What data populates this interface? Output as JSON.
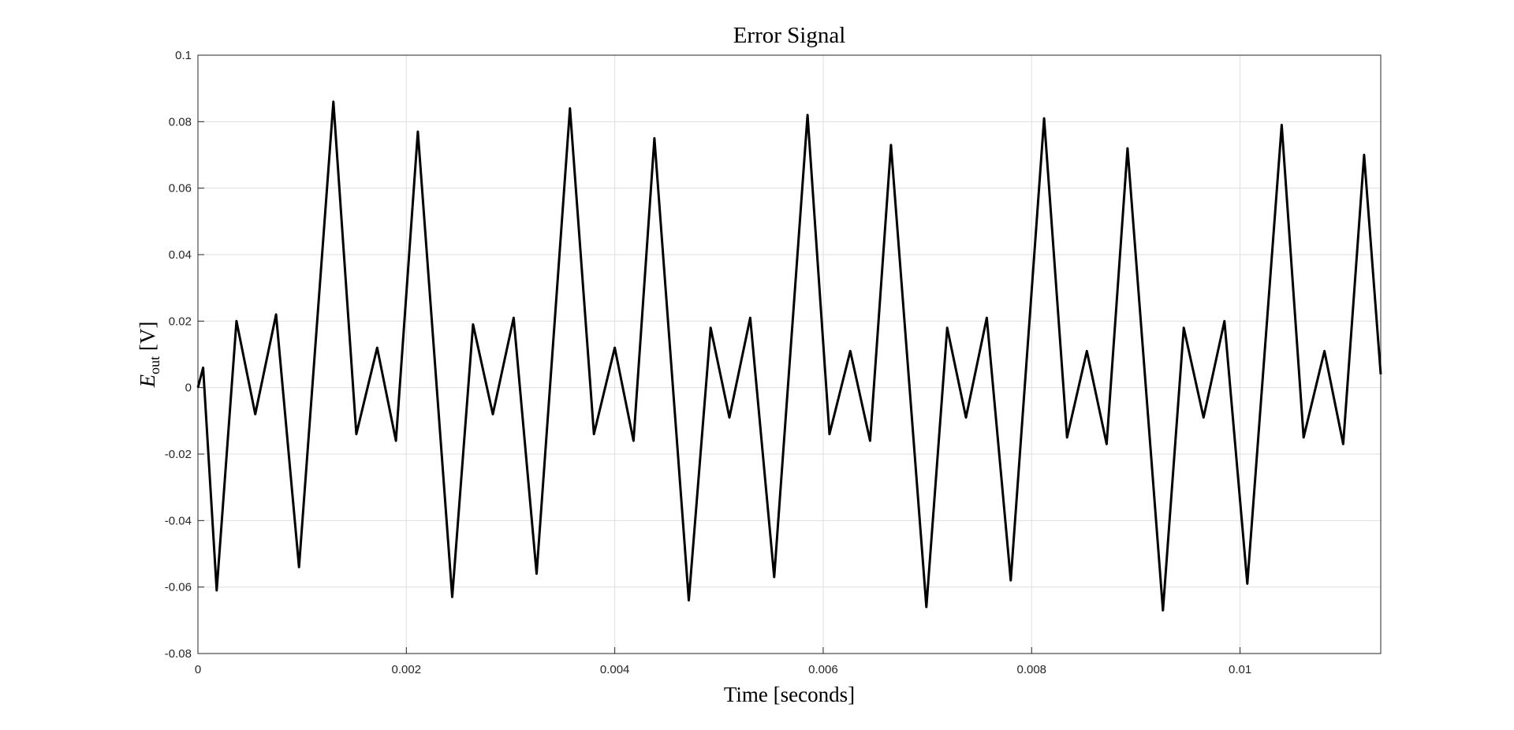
{
  "chart_data": {
    "type": "line",
    "title": "Error Signal",
    "xlabel": "Time [seconds]",
    "ylabel": {
      "main": "E",
      "subscript": "out",
      "unit": "[V]"
    },
    "xlim": [
      0,
      0.01135
    ],
    "ylim": [
      -0.08,
      0.1
    ],
    "xticks": [
      0,
      0.002,
      0.004,
      0.006,
      0.008,
      0.01
    ],
    "xtick_labels": [
      "0",
      "0.002",
      "0.004",
      "0.006",
      "0.008",
      "0.01"
    ],
    "yticks": [
      -0.08,
      -0.06,
      -0.04,
      -0.02,
      0,
      0.02,
      0.04,
      0.06,
      0.08,
      0.1
    ],
    "ytick_labels": [
      "-0.08",
      "-0.06",
      "-0.04",
      "-0.02",
      "0",
      "0.02",
      "0.04",
      "0.06",
      "0.08",
      "0.1"
    ],
    "grid": true,
    "line_color": "#000000",
    "series": [
      {
        "x": [
          0,
          5e-05,
          0.00018,
          0.00037,
          0.00055,
          0.00075,
          0.00097,
          0.0013,
          0.00152,
          0.00172,
          0.0019,
          0.00211,
          0.00244,
          0.00264,
          0.00283,
          0.00303,
          0.00325,
          0.00357,
          0.0038,
          0.004,
          0.00418,
          0.00438,
          0.00471,
          0.00492,
          0.0051,
          0.0053,
          0.00553,
          0.00585,
          0.00606,
          0.00626,
          0.00645,
          0.00665,
          0.00699,
          0.00719,
          0.00737,
          0.00757,
          0.0078,
          0.00812,
          0.00834,
          0.00853,
          0.00872,
          0.00892,
          0.00926,
          0.00946,
          0.00965,
          0.00985,
          0.01007,
          0.0104,
          0.01061,
          0.01081,
          0.01099,
          0.01119,
          0.01135
        ],
        "y": [
          0,
          0.006,
          -0.061,
          0.02,
          -0.008,
          0.022,
          -0.054,
          0.086,
          -0.014,
          0.012,
          -0.016,
          0.077,
          -0.063,
          0.019,
          -0.008,
          0.021,
          -0.056,
          0.084,
          -0.014,
          0.012,
          -0.016,
          0.075,
          -0.064,
          0.018,
          -0.009,
          0.021,
          -0.057,
          0.082,
          -0.014,
          0.011,
          -0.016,
          0.073,
          -0.066,
          0.018,
          -0.009,
          0.021,
          -0.058,
          0.081,
          -0.015,
          0.011,
          -0.017,
          0.072,
          -0.067,
          0.018,
          -0.009,
          0.02,
          -0.059,
          0.079,
          -0.015,
          0.011,
          -0.017,
          0.07,
          0.004
        ]
      }
    ]
  }
}
